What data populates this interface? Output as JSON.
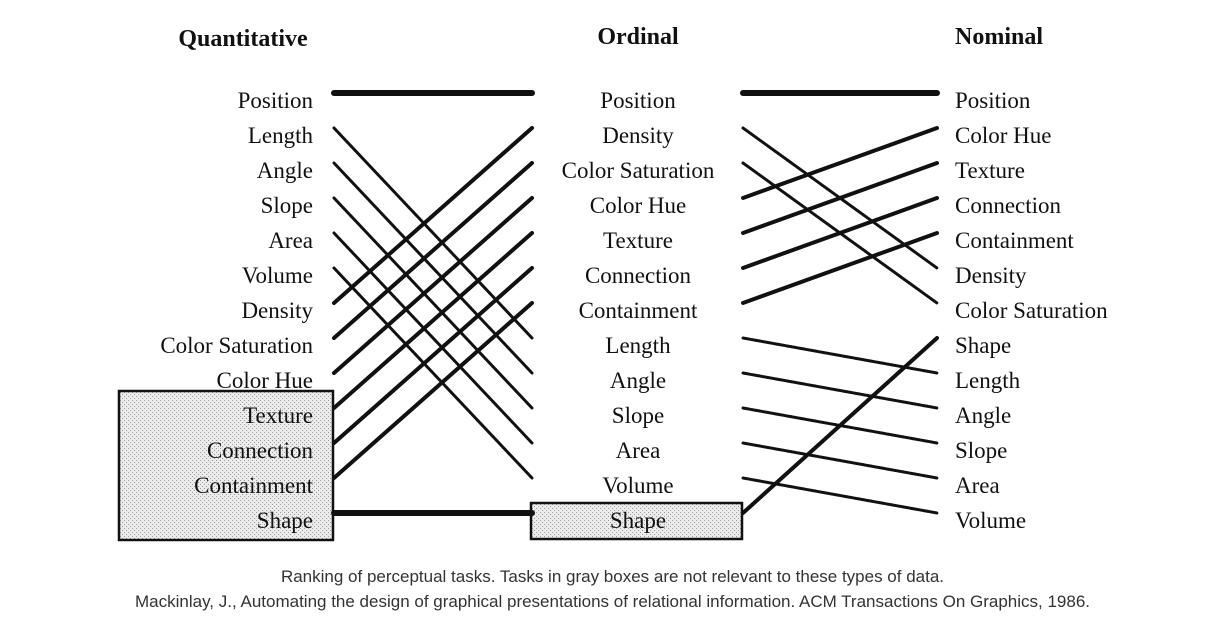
{
  "colors": {
    "ink": "#111111",
    "gray_box_fill": "#d8d8d8",
    "caption_text": "#333333"
  },
  "columns": [
    {
      "header": "Quantitative",
      "items": [
        "Position",
        "Length",
        "Angle",
        "Slope",
        "Area",
        "Volume",
        "Density",
        "Color Saturation",
        "Color Hue",
        "Texture",
        "Connection",
        "Containment",
        "Shape"
      ],
      "not_relevant": [
        "Texture",
        "Connection",
        "Containment",
        "Shape"
      ]
    },
    {
      "header": "Ordinal",
      "items": [
        "Position",
        "Density",
        "Color Saturation",
        "Color Hue",
        "Texture",
        "Connection",
        "Containment",
        "Length",
        "Angle",
        "Slope",
        "Area",
        "Volume",
        "Shape"
      ],
      "not_relevant": [
        "Shape"
      ]
    },
    {
      "header": "Nominal",
      "items": [
        "Position",
        "Color Hue",
        "Texture",
        "Connection",
        "Containment",
        "Density",
        "Color Saturation",
        "Shape",
        "Length",
        "Angle",
        "Slope",
        "Area",
        "Volume"
      ],
      "not_relevant": []
    }
  ],
  "caption": {
    "line1": "Ranking of perceptual tasks. Tasks in gray boxes are not relevant to these types of data.",
    "line2": "Mackinlay, J., Automating the design of graphical presentations of relational information. ACM Transactions On Graphics, 1986."
  }
}
